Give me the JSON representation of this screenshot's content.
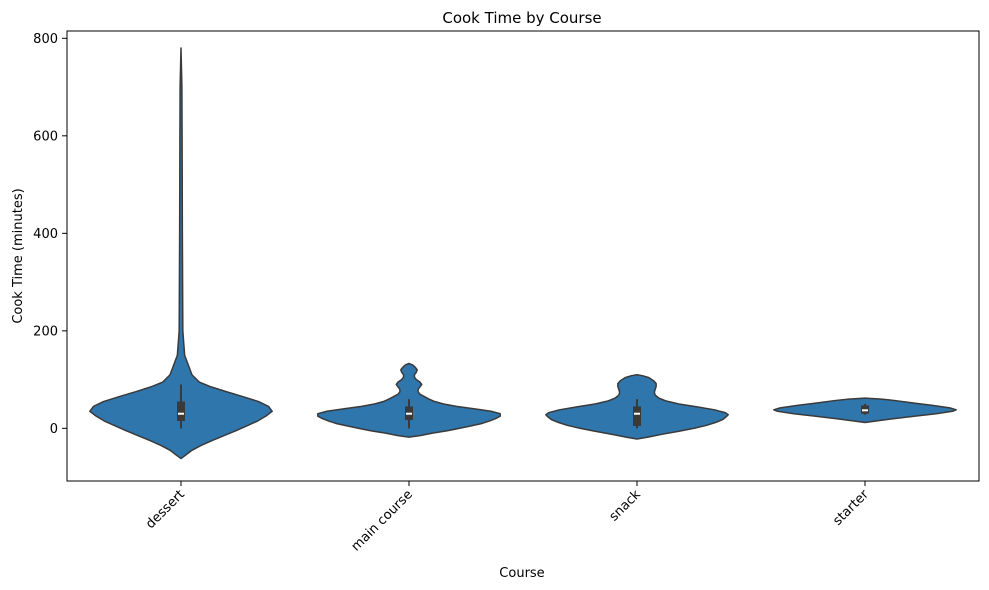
{
  "chart_data": {
    "type": "violin",
    "title": "Cook Time by Course",
    "xlabel": "Course",
    "ylabel": "Cook Time (minutes)",
    "ylim": [
      -108,
      815
    ],
    "yticks": [
      0,
      200,
      400,
      600,
      800
    ],
    "grid": false,
    "legend": "none",
    "color": "#2f76ad",
    "edge_color": "#3a3a3a",
    "categories": [
      "dessert",
      "main course",
      "snack",
      "starter"
    ],
    "series": [
      {
        "category": "dessert",
        "range": [
          -62,
          780
        ],
        "quartiles": [
          15,
          30,
          55
        ],
        "whiskers": [
          0,
          90
        ],
        "profile": [
          [
            -62,
            0
          ],
          [
            -55,
            0.05
          ],
          [
            -45,
            0.12
          ],
          [
            -35,
            0.22
          ],
          [
            -25,
            0.34
          ],
          [
            -15,
            0.47
          ],
          [
            -5,
            0.6
          ],
          [
            5,
            0.72
          ],
          [
            15,
            0.84
          ],
          [
            25,
            0.93
          ],
          [
            35,
            1.0
          ],
          [
            45,
            0.96
          ],
          [
            55,
            0.85
          ],
          [
            65,
            0.68
          ],
          [
            75,
            0.5
          ],
          [
            85,
            0.33
          ],
          [
            95,
            0.2
          ],
          [
            110,
            0.12
          ],
          [
            130,
            0.08
          ],
          [
            150,
            0.04
          ],
          [
            200,
            0.02
          ],
          [
            400,
            0.015
          ],
          [
            600,
            0.012
          ],
          [
            700,
            0.01
          ],
          [
            780,
            0
          ]
        ]
      },
      {
        "category": "main course",
        "range": [
          -18,
          133
        ],
        "quartiles": [
          17,
          30,
          45
        ],
        "whiskers": [
          0,
          60
        ],
        "profile": [
          [
            -18,
            0
          ],
          [
            -15,
            0.12
          ],
          [
            -10,
            0.25
          ],
          [
            -5,
            0.42
          ],
          [
            0,
            0.55
          ],
          [
            5,
            0.68
          ],
          [
            10,
            0.8
          ],
          [
            15,
            0.88
          ],
          [
            20,
            0.95
          ],
          [
            25,
            1.0
          ],
          [
            30,
            1.0
          ],
          [
            35,
            0.9
          ],
          [
            40,
            0.72
          ],
          [
            45,
            0.52
          ],
          [
            50,
            0.38
          ],
          [
            55,
            0.28
          ],
          [
            60,
            0.22
          ],
          [
            65,
            0.17
          ],
          [
            70,
            0.12
          ],
          [
            75,
            0.1
          ],
          [
            80,
            0.1
          ],
          [
            85,
            0.12
          ],
          [
            90,
            0.14
          ],
          [
            95,
            0.12
          ],
          [
            100,
            0.08
          ],
          [
            105,
            0.06
          ],
          [
            110,
            0.06
          ],
          [
            115,
            0.08
          ],
          [
            120,
            0.09
          ],
          [
            125,
            0.07
          ],
          [
            130,
            0.04
          ],
          [
            133,
            0
          ]
        ]
      },
      {
        "category": "snack",
        "range": [
          -22,
          110
        ],
        "quartiles": [
          5,
          30,
          45
        ],
        "whiskers": [
          0,
          60
        ],
        "profile": [
          [
            -22,
            0
          ],
          [
            -18,
            0.12
          ],
          [
            -12,
            0.28
          ],
          [
            -6,
            0.46
          ],
          [
            0,
            0.62
          ],
          [
            6,
            0.76
          ],
          [
            12,
            0.86
          ],
          [
            18,
            0.94
          ],
          [
            24,
            0.98
          ],
          [
            28,
            1.0
          ],
          [
            32,
            0.97
          ],
          [
            38,
            0.85
          ],
          [
            44,
            0.66
          ],
          [
            50,
            0.46
          ],
          [
            56,
            0.32
          ],
          [
            62,
            0.24
          ],
          [
            68,
            0.2
          ],
          [
            74,
            0.19
          ],
          [
            80,
            0.2
          ],
          [
            86,
            0.21
          ],
          [
            92,
            0.21
          ],
          [
            98,
            0.18
          ],
          [
            104,
            0.13
          ],
          [
            108,
            0.06
          ],
          [
            110,
            0
          ]
        ]
      },
      {
        "category": "starter",
        "range": [
          12,
          62
        ],
        "quartiles": [
          30,
          37,
          47
        ],
        "whiskers": [
          28,
          50
        ],
        "profile": [
          [
            12,
            0
          ],
          [
            15,
            0.12
          ],
          [
            20,
            0.32
          ],
          [
            25,
            0.55
          ],
          [
            30,
            0.78
          ],
          [
            35,
            0.96
          ],
          [
            38,
            1.0
          ],
          [
            42,
            0.93
          ],
          [
            47,
            0.74
          ],
          [
            52,
            0.53
          ],
          [
            57,
            0.33
          ],
          [
            60,
            0.18
          ],
          [
            62,
            0
          ]
        ]
      }
    ]
  }
}
